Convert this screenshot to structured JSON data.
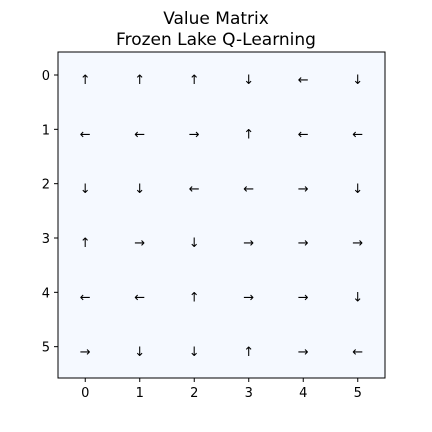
{
  "chart_data": {
    "type": "heatmap",
    "title": [
      "Value Matrix",
      "Frozen Lake Q-Learning"
    ],
    "x_ticks": [
      "0",
      "1",
      "2",
      "3",
      "4",
      "5"
    ],
    "y_ticks": [
      "0",
      "1",
      "2",
      "3",
      "4",
      "5"
    ],
    "cell_color": "#f5f9ff",
    "arrows": [
      [
        "↑",
        "↑",
        "↑",
        "↓",
        "←",
        "↓"
      ],
      [
        "←",
        "←",
        "→",
        "↑",
        "←",
        "←"
      ],
      [
        "↓",
        "↓",
        "←",
        "←",
        "→",
        "↓"
      ],
      [
        "↑",
        "→",
        "↓",
        "→",
        "→",
        "→"
      ],
      [
        "←",
        "←",
        "↑",
        "→",
        "→",
        "↓"
      ],
      [
        "→",
        "↓",
        "↓",
        "↑",
        "→",
        "←"
      ]
    ]
  }
}
